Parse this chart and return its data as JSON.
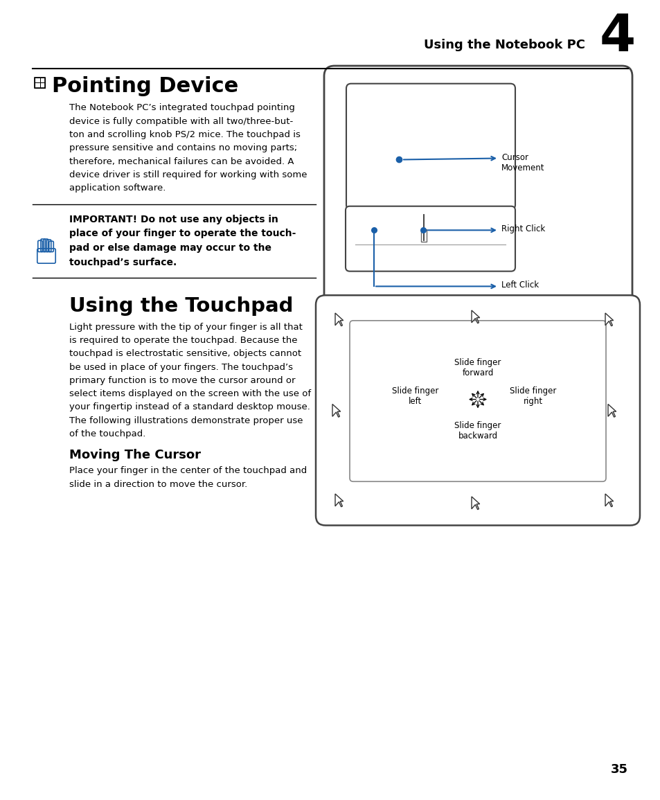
{
  "page_title": "Using the Notebook PC",
  "chapter_number": "4",
  "section1_title": "Pointing Device",
  "section1_body": "The Notebook PC’s integrated touchpad pointing\ndevice is fully compatible with all two/three-but-\nton and scrolling knob PS/2 mice. The touchpad is\npressure sensitive and contains no moving parts;\ntherefore, mechanical failures can be avoided. A\ndevice driver is still required for working with some\napplication software.",
  "warning_text": "IMPORTANT! Do not use any objects in\nplace of your finger to operate the touch-\npad or else damage may occur to the\ntouchpad’s surface.",
  "section2_title": "Using the Touchpad",
  "section2_body": "Light pressure with the tip of your finger is all that\nis required to operate the touchpad. Because the\ntouchpad is electrostatic sensitive, objects cannot\nbe used in place of your fingers. The touchpad’s\nprimary function is to move the cursor around or\nselect items displayed on the screen with the use of\nyour fingertip instead of a standard desktop mouse.\nThe following illustrations demonstrate proper use\nof the touchpad.",
  "section3_title": "Moving The Cursor",
  "section3_body": "Place your finger in the center of the touchpad and\nslide in a direction to move the cursor.",
  "page_number": "35",
  "blue_color": "#1a5fa8",
  "text_color": "#000000",
  "bg_color": "#ffffff"
}
